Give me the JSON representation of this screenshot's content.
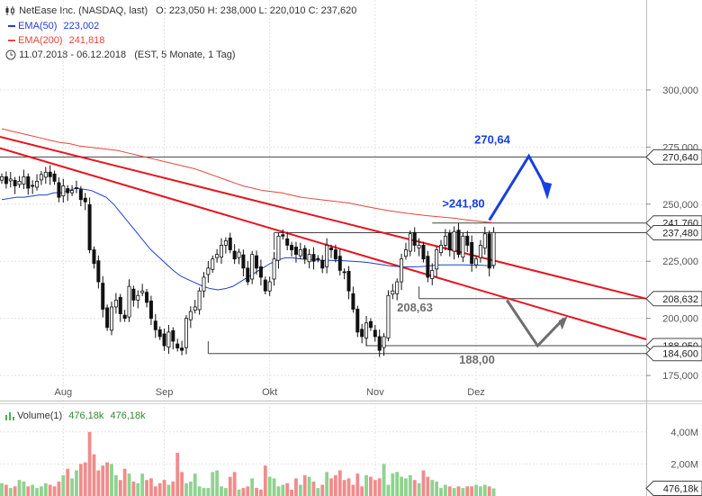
{
  "header": {
    "title": "NetEase Inc. (NASDAQ, last)",
    "ohlc": "O: 223,050  H: 238,000  L: 220,010  C: 237,620",
    "ema50_label": "EMA(50)",
    "ema50_value": "223,002",
    "ema200_label": "EMA(200)",
    "ema200_value": "241,818",
    "range": "11.07.2018 - 06.12.2018",
    "range_info": "(EST, 5 Monate, 1 Tag)"
  },
  "volume_header": {
    "label": "Volume(1)",
    "value1": "476,18k",
    "value2": "476,18k"
  },
  "colors": {
    "ema50": "#1f3fcc",
    "ema200": "#e8453c",
    "trend": "#e6141e",
    "blue_arrow": "#1840e0",
    "gray_arrow": "#6e6e6e",
    "level_line": "#444444",
    "vol_up": "#8fd28f",
    "vol_down": "#f08c8c",
    "grid": "#e4e4e4"
  },
  "chart_data": {
    "type": "candlestick",
    "y_ticks": [
      "300,000",
      "275,000",
      "250,000",
      "225,000",
      "200,000",
      "175,000"
    ],
    "y_tick_values": [
      300,
      275,
      250,
      225,
      200,
      175
    ],
    "ylim": [
      164,
      311
    ],
    "x_ticks": [
      "Aug",
      "Sep",
      "Okt",
      "Nov",
      "Dez"
    ],
    "x_tick_index": [
      14,
      37,
      61,
      85,
      108
    ],
    "price_tags": [
      {
        "label": "270,640",
        "value": 270.64
      },
      {
        "label": "241,760",
        "value": 241.76
      },
      {
        "label": "237,480",
        "value": 237.48
      },
      {
        "label": "208,632",
        "value": 208.632
      },
      {
        "label": "188,050",
        "value": 188.05
      },
      {
        "label": "184,600",
        "value": 184.6
      }
    ],
    "annotations": [
      {
        "text": "270,64",
        "color": "#1840e0"
      },
      {
        "text": ">241,80",
        "color": "#1840e0"
      },
      {
        "text": "208,63",
        "color": "#6e6e6e"
      },
      {
        "text": "188,00",
        "color": "#6e6e6e"
      }
    ],
    "candles_close": [
      262,
      259,
      261,
      258,
      260,
      262,
      257,
      258,
      260,
      263,
      264,
      262,
      260,
      253,
      258,
      255,
      256,
      257,
      252,
      251,
      230,
      224,
      216,
      204,
      196,
      205,
      208,
      202,
      200,
      214,
      208,
      210,
      212,
      207,
      200,
      195,
      192,
      188,
      194,
      190,
      187,
      186,
      200,
      203,
      205,
      212,
      218,
      222,
      226,
      228,
      232,
      234,
      230,
      226,
      229,
      222,
      216,
      228,
      222,
      218,
      212,
      216,
      226,
      236,
      236,
      232,
      230,
      228,
      230,
      226,
      228,
      225,
      226,
      222,
      232,
      230,
      226,
      221,
      220,
      212,
      204,
      194,
      192,
      198,
      196,
      192,
      186,
      192,
      210,
      212,
      216,
      226,
      230,
      237,
      232,
      232,
      226,
      218,
      221,
      230,
      232,
      236,
      230,
      238,
      228,
      236,
      232,
      224,
      226,
      232,
      237,
      222,
      237.62
    ],
    "ema50": [
      252,
      252.5,
      253,
      253,
      253.5,
      254,
      254,
      255,
      255,
      256,
      257,
      256.5,
      256,
      254.5,
      253,
      250,
      246,
      242,
      238,
      234,
      230,
      227,
      224,
      221,
      218.5,
      217,
      215.5,
      214,
      213,
      212.5,
      213,
      214,
      216,
      218,
      220,
      222,
      224,
      225.5,
      226.5,
      226.5,
      226,
      225.8,
      225.6,
      225.4,
      225.4,
      225.3,
      225.2,
      225,
      224.8,
      224.5,
      224,
      223.5,
      223,
      222.7,
      222.5,
      222.5,
      222.6,
      222.8,
      223.2,
      223.4,
      223.4,
      223.4,
      223.4,
      223.3,
      223.3,
      223.1,
      223.002
    ],
    "ema200": [
      283,
      282,
      281,
      280,
      279,
      278,
      277,
      276.5,
      275.5,
      275,
      274.5,
      274,
      273.5,
      272.5,
      271.5,
      270.5,
      269.5,
      268.5,
      267.5,
      266.5,
      265.5,
      264,
      262.5,
      261,
      259.5,
      258,
      257,
      256,
      255.5,
      255,
      254,
      253,
      252.5,
      252,
      251.5,
      251,
      250.5,
      249.6,
      248.8,
      248,
      247.2,
      246.6,
      246,
      245.5,
      245,
      244.6,
      244.2,
      243.8,
      243.2,
      242.7,
      242.3,
      241.818
    ],
    "volume_M": [
      0.8,
      0.7,
      0.5,
      0.6,
      1.0,
      0.9,
      0.6,
      0.7,
      0.5,
      0.6,
      0.8,
      0.7,
      0.6,
      0.9,
      1.3,
      1.7,
      1.1,
      1.6,
      2.0,
      2.1,
      4.0,
      2.6,
      1.6,
      1.9,
      2.1,
      2.0,
      1.3,
      1.0,
      1.7,
      1.4,
      0.9,
      0.8,
      1.4,
      1.0,
      1.1,
      0.6,
      0.8,
      1.0,
      0.7,
      0.9,
      2.7,
      1.5,
      0.8,
      0.9,
      1.4,
      0.6,
      0.5,
      0.5,
      1.5,
      1.6,
      0.6,
      0.5,
      1.2,
      1.5,
      0.4,
      0.5,
      0.6,
      1.1,
      0.5,
      0.4,
      1.9,
      1.2,
      1.1,
      0.6,
      0.7,
      0.8,
      0.4,
      1.1,
      0.7,
      1.3,
      1.2,
      0.9,
      0.5,
      0.7,
      1.5,
      1.1,
      1.3,
      1.6,
      1.0,
      1.1,
      0.7,
      1.4,
      0.6,
      1.3,
      1.2,
      1.0,
      1.1,
      2.0,
      0.7,
      1.4,
      1.5,
      1.2,
      1.1,
      1.3,
      1.0,
      0.8,
      1.6,
      1.2,
      1.0,
      0.9,
      0.5,
      0.7,
      0.6,
      0.5,
      0.6,
      0.5,
      0.6,
      0.6,
      0.7,
      0.6,
      0.7,
      0.6,
      0.476
    ],
    "vol_ticks": [
      "4,00M",
      "2,00M"
    ],
    "vol_tick_values": [
      4,
      2
    ],
    "vol_last_tag": "476,18k"
  }
}
